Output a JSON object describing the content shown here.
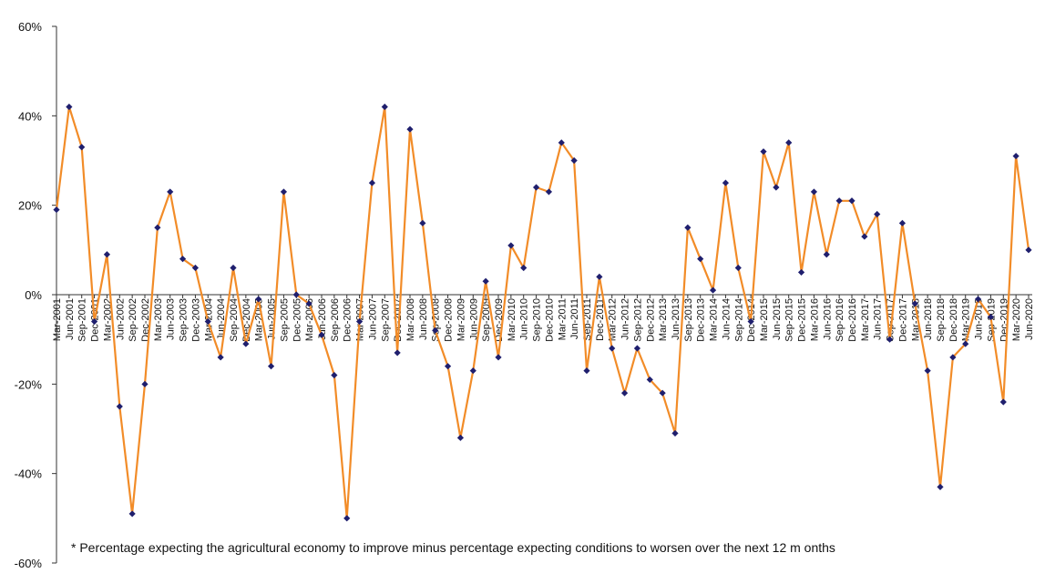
{
  "chart_data": {
    "type": "line",
    "title": "",
    "xlabel": "",
    "ylabel": "",
    "ylim": [
      -60,
      60
    ],
    "y_ticks": [
      -60,
      -40,
      -20,
      0,
      20,
      40,
      60
    ],
    "y_tick_labels": [
      "-60%",
      "-40%",
      "-20%",
      "0%",
      "20%",
      "40%",
      "60%"
    ],
    "grid": false,
    "legend": "none",
    "line_color": "#F28C28",
    "marker_color": "#1F1F6E",
    "categories": [
      "Mar-2001",
      "Jun-2001",
      "Sep-2001",
      "Dec-2001",
      "Mar-2002",
      "Jun-2002",
      "Sep-2002",
      "Dec-2002",
      "Mar-2003",
      "Jun-2003",
      "Sep-2003",
      "Dec-2003",
      "Mar-2004",
      "Jun-2004",
      "Sep-2004",
      "Dec-2004",
      "Mar-2005",
      "Jun-2005",
      "Sep-2005",
      "Dec-2005",
      "Mar-2006",
      "Jun-2006",
      "Sep-2006",
      "Dec-2006",
      "Mar-2007",
      "Jun-2007",
      "Sep-2007",
      "Dec-2007",
      "Mar-2008",
      "Jun-2008",
      "Sep-2008",
      "Dec-2008",
      "Mar-2009",
      "Jun-2009",
      "Sep-2009",
      "Dec-2009",
      "Mar-2010",
      "Jun-2010",
      "Sep-2010",
      "Dec-2010",
      "Mar-2011",
      "Jun-2011",
      "Sep-2011",
      "Dec-2011",
      "Mar-2012",
      "Jun-2012",
      "Sep-2012",
      "Dec-2012",
      "Mar-2013",
      "Jun-2013",
      "Sep-2013",
      "Dec-2013",
      "Mar-2014",
      "Jun-2014",
      "Sep-2014",
      "Dec-2014",
      "Mar-2015",
      "Jun-2015",
      "Sep-2015",
      "Dec-2015",
      "Mar-2016",
      "Jun-2016",
      "Sep-2016",
      "Dec-2016",
      "Mar-2017",
      "Jun-2017",
      "Sep-2017",
      "Dec-2017",
      "Mar-2018",
      "Jun-2018",
      "Sep-2018",
      "Dec-2018",
      "Mar-2019",
      "Jun-2019",
      "Sep-2019",
      "Dec-2019",
      "Mar-2020",
      "Jun-2020"
    ],
    "values": [
      19,
      42,
      33,
      -6,
      9,
      -25,
      -49,
      -20,
      15,
      23,
      8,
      6,
      -6,
      -14,
      6,
      -11,
      -1,
      -16,
      23,
      0,
      -2,
      -9,
      -18,
      -50,
      -6,
      25,
      42,
      -13,
      37,
      16,
      -8,
      -16,
      -32,
      -17,
      3,
      -14,
      11,
      6,
      24,
      23,
      34,
      30,
      -17,
      4,
      -12,
      -22,
      -12,
      -19,
      -22,
      -31,
      15,
      8,
      1,
      25,
      6,
      -6,
      32,
      24,
      34,
      5,
      23,
      9,
      21,
      21,
      13,
      18,
      -10,
      16,
      -2,
      -17,
      -43,
      -14,
      -11,
      -1,
      -5,
      -24,
      31,
      10
    ],
    "footnote": "* Percentage expecting the agricultural economy to improve minus percentage expecting conditions to worsen over the next 12 m onths"
  }
}
